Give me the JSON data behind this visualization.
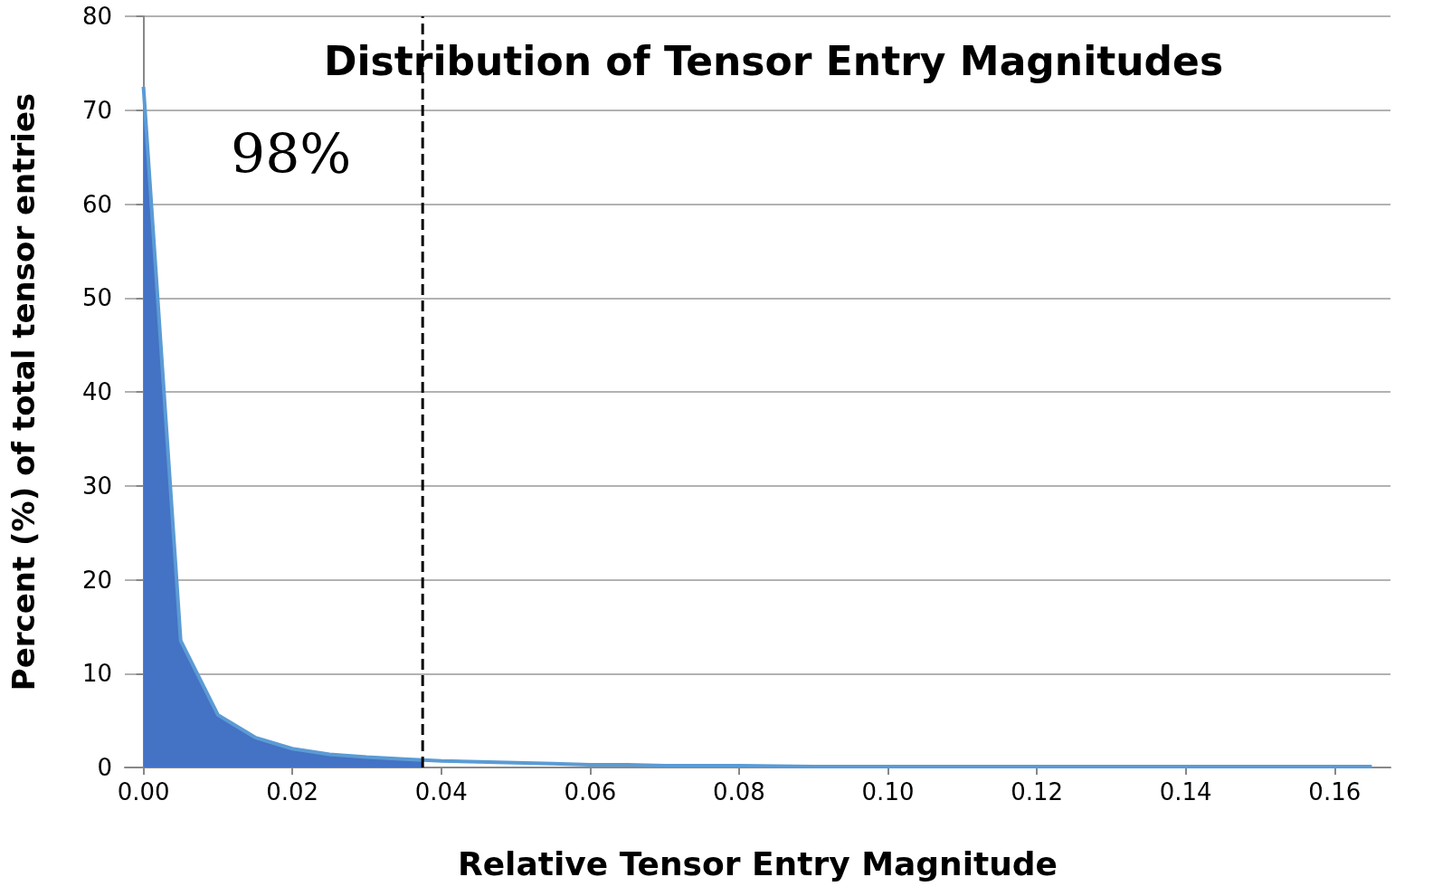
{
  "chart_data": {
    "type": "area",
    "title": "Distribution of Tensor Entry Magnitudes",
    "xlabel": "Relative Tensor Entry Magnitude",
    "ylabel": "Percent (%) of total tensor entries",
    "series": [
      {
        "color": "#4472c4",
        "x": [
          0,
          0.005,
          0.01,
          0.015,
          0.02,
          0.025,
          0.03,
          0.035,
          0.0375
        ],
        "values": [
          72.5,
          13.5,
          5.6,
          3.2,
          2.0,
          1.4,
          1.1,
          0.9,
          0.8
        ]
      },
      {
        "type": "line",
        "color": "#5b9bd5",
        "x": [
          0,
          0.005,
          0.01,
          0.015,
          0.02,
          0.025,
          0.03,
          0.035,
          0.04,
          0.045,
          0.05,
          0.055,
          0.06,
          0.065,
          0.07,
          0.08,
          0.09,
          0.1,
          0.11,
          0.12,
          0.13,
          0.14,
          0.15,
          0.16,
          0.165
        ],
        "values": [
          72.5,
          13.5,
          5.6,
          3.2,
          2.0,
          1.4,
          1.1,
          0.9,
          0.7,
          0.6,
          0.5,
          0.4,
          0.3,
          0.3,
          0.2,
          0.2,
          0.1,
          0.1,
          0.1,
          0.1,
          0.1,
          0.1,
          0.1,
          0.1,
          0.1
        ]
      }
    ],
    "xlim": [
      -0.0025,
      0.1675
    ],
    "xticks": [
      {
        "value": 0,
        "label": "0.00"
      },
      {
        "value": 0.02,
        "label": "0.02"
      },
      {
        "value": 0.04,
        "label": "0.04"
      },
      {
        "value": 0.06,
        "label": "0.06"
      },
      {
        "value": 0.08,
        "label": "0.08"
      },
      {
        "value": 0.1,
        "label": "0.10"
      },
      {
        "value": 0.12,
        "label": "0.12"
      },
      {
        "value": 0.14,
        "label": "0.14"
      },
      {
        "value": 0.16,
        "label": "0.16"
      }
    ],
    "ylim": [
      0,
      80
    ],
    "yticks": [
      0,
      10,
      20,
      30,
      40,
      50,
      60,
      70,
      80
    ],
    "grid": "y",
    "marker": "none",
    "ref_lines": [
      {
        "axis": "x",
        "value": 0.0375,
        "color": "#000000",
        "line_style": "dashed"
      }
    ],
    "annotations": [
      "98%"
    ]
  }
}
